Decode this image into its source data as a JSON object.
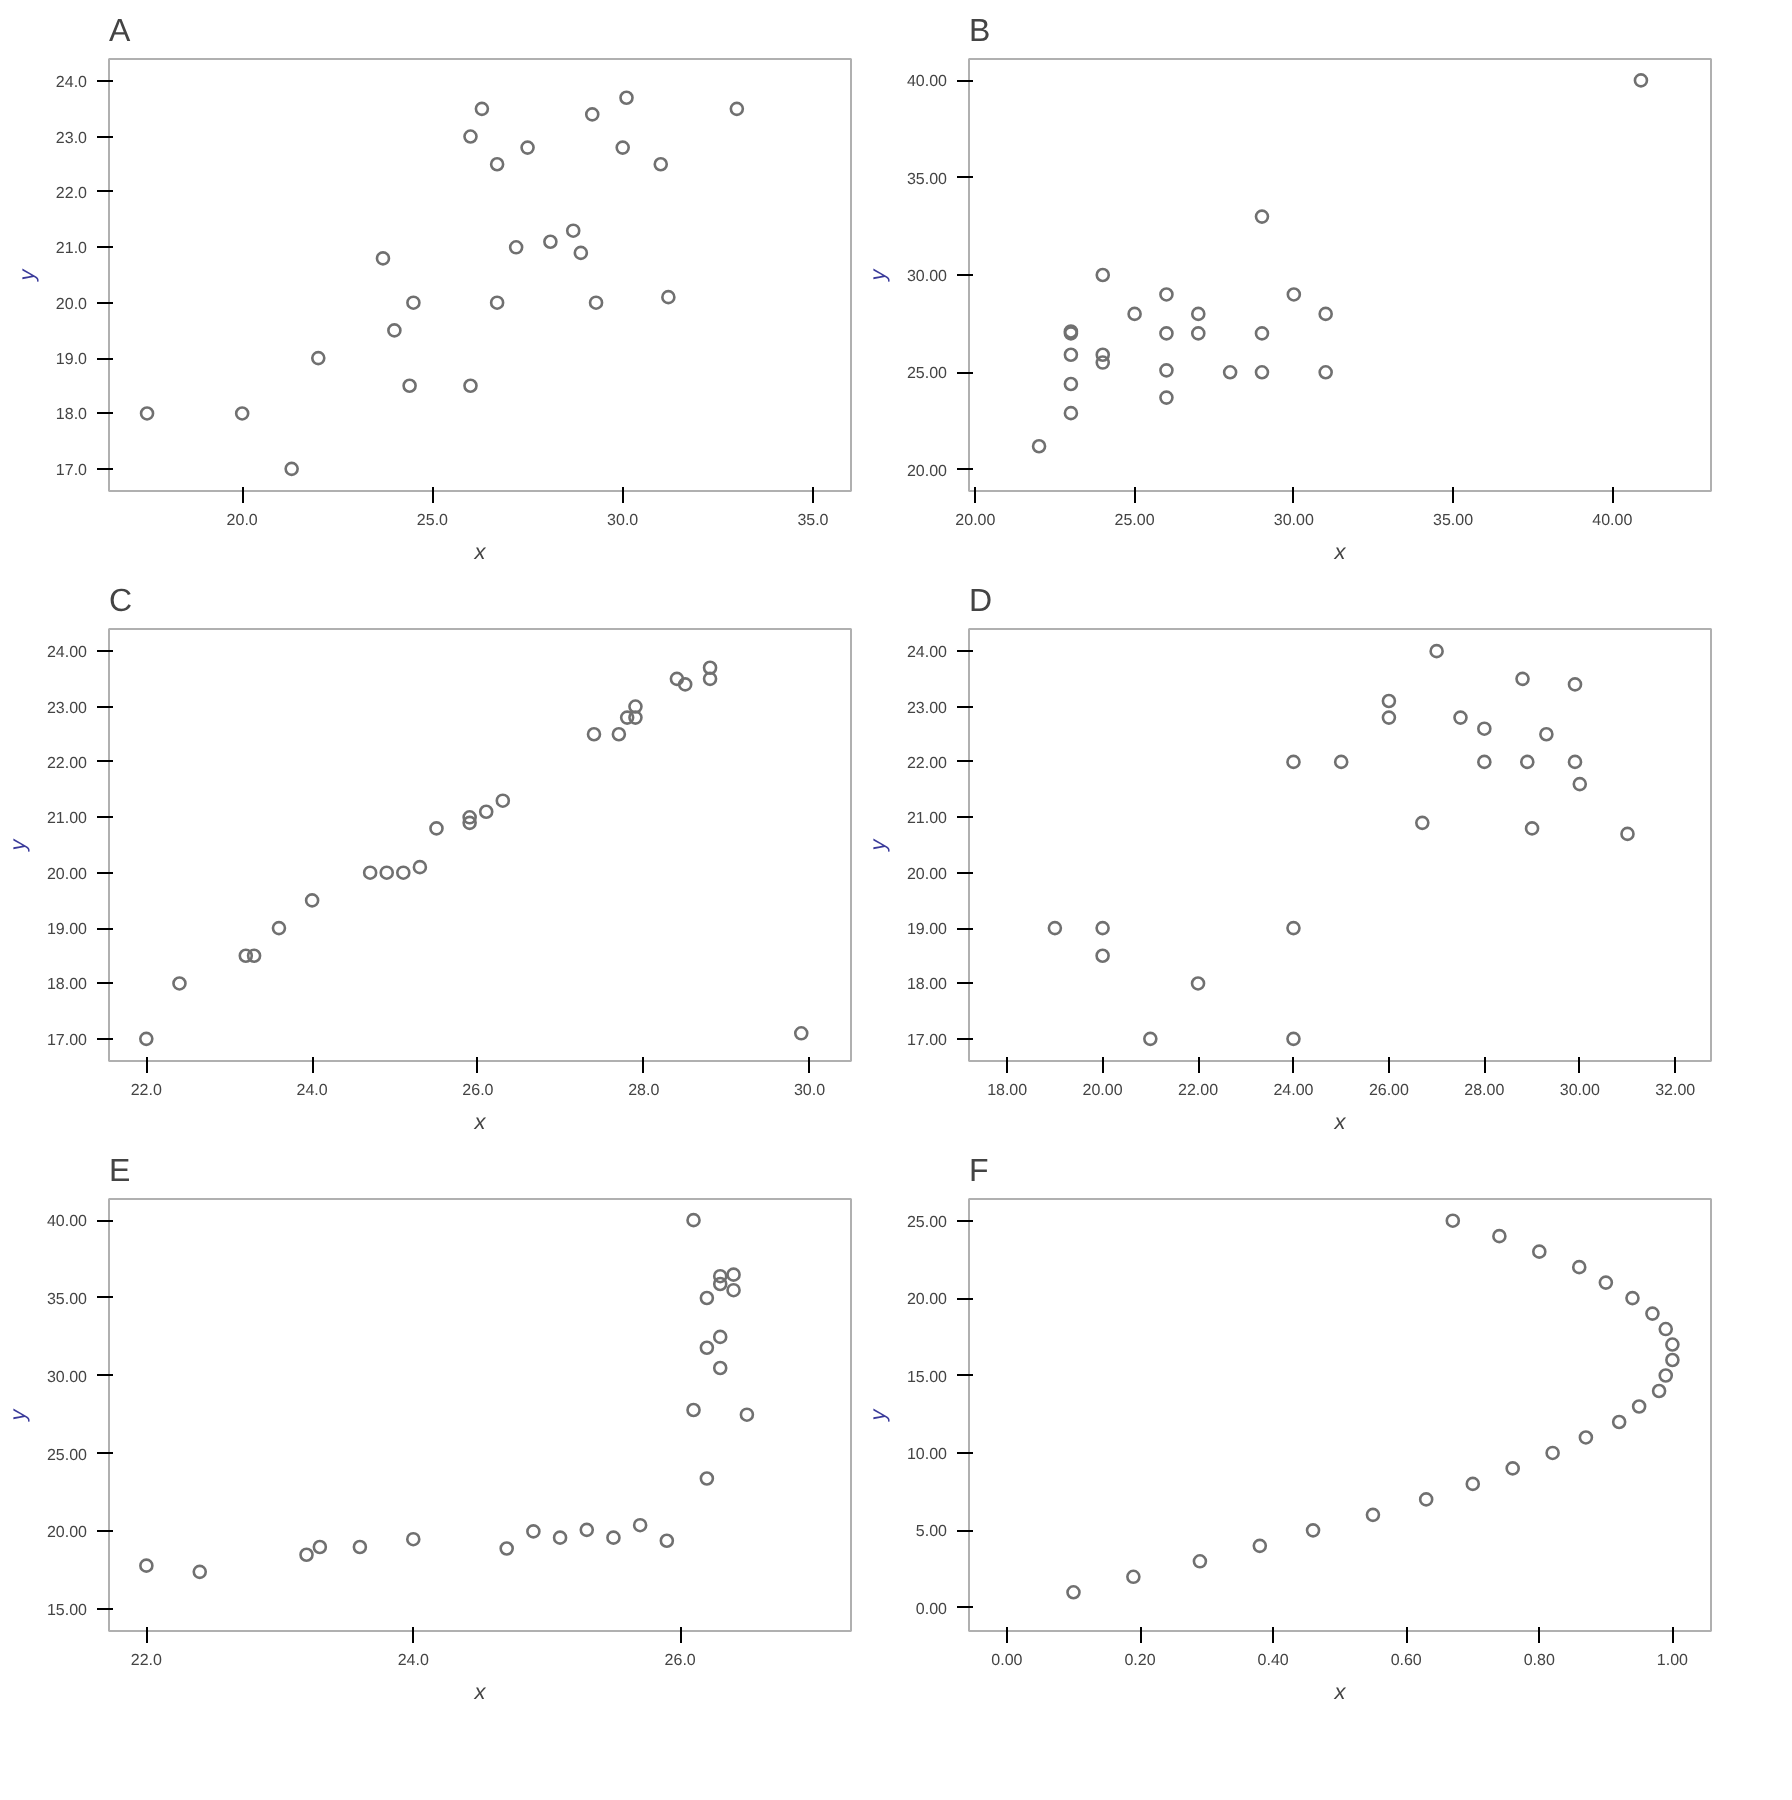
{
  "chart_data": [
    {
      "type": "scatter",
      "title": "A",
      "xlabel": "x",
      "ylabel": "y",
      "marker": "circle",
      "grid": false,
      "color": "#707070",
      "x": [
        17.5,
        20.0,
        21.3,
        22.0,
        23.7,
        24.0,
        24.5,
        24.4,
        26.0,
        26.3,
        26.0,
        26.7,
        26.7,
        27.2,
        27.5,
        28.1,
        28.7,
        28.9,
        29.2,
        29.3,
        30.0,
        30.1,
        31.0,
        31.2,
        33.0
      ],
      "values": [
        18.0,
        18.0,
        17.0,
        19.0,
        20.8,
        19.5,
        20.0,
        18.5,
        23.0,
        23.5,
        18.5,
        22.5,
        20.0,
        21.0,
        22.8,
        21.1,
        21.3,
        20.9,
        23.4,
        20.0,
        22.8,
        23.7,
        22.5,
        20.1,
        23.5
      ],
      "xlim": [
        16.5,
        36.0
      ],
      "ylim": [
        16.6,
        24.4
      ],
      "xticks": [
        {
          "value": 20,
          "label": "20.0"
        },
        {
          "value": 25,
          "label": "25.0"
        },
        {
          "value": 30,
          "label": "30.0"
        },
        {
          "value": 35,
          "label": "35.0"
        }
      ],
      "yticks": [
        {
          "value": 17,
          "label": "17.0"
        },
        {
          "value": 18,
          "label": "18.0"
        },
        {
          "value": 19,
          "label": "19.0"
        },
        {
          "value": 20,
          "label": "20.0"
        },
        {
          "value": 21,
          "label": "21.0"
        },
        {
          "value": 22,
          "label": "22.0"
        },
        {
          "value": 23,
          "label": "23.0"
        },
        {
          "value": 24,
          "label": "24.0"
        }
      ]
    },
    {
      "type": "scatter",
      "title": "B",
      "xlabel": "x",
      "ylabel": "y",
      "marker": "circle",
      "grid": false,
      "color": "#707070",
      "x": [
        22.0,
        23.0,
        23.0,
        23.0,
        23.0,
        23.0,
        24.0,
        24.0,
        24.0,
        25.0,
        26.0,
        26.0,
        26.0,
        26.0,
        27.0,
        27.0,
        28.0,
        29.0,
        29.0,
        29.0,
        30.0,
        31.0,
        31.0,
        40.9
      ],
      "values": [
        21.2,
        22.9,
        24.4,
        25.9,
        27.0,
        27.1,
        30.0,
        25.9,
        25.5,
        28.0,
        29.0,
        27.0,
        25.1,
        23.7,
        28.0,
        27.0,
        25.0,
        33.0,
        27.0,
        25.0,
        29.0,
        28.0,
        25.0,
        40.0
      ],
      "xlim": [
        19.8,
        43.1
      ],
      "ylim": [
        18.9,
        41.1
      ],
      "xticks": [
        {
          "value": 20,
          "label": "20.00"
        },
        {
          "value": 25,
          "label": "25.00"
        },
        {
          "value": 30,
          "label": "30.00"
        },
        {
          "value": 35,
          "label": "35.00"
        },
        {
          "value": 40,
          "label": "40.00"
        }
      ],
      "yticks": [
        {
          "value": 20,
          "label": "20.00"
        },
        {
          "value": 25,
          "label": "25.00"
        },
        {
          "value": 30,
          "label": "30.00"
        },
        {
          "value": 35,
          "label": "35.00"
        },
        {
          "value": 40,
          "label": "40.00"
        }
      ]
    },
    {
      "type": "scatter",
      "title": "C",
      "xlabel": "x",
      "ylabel": "y",
      "marker": "circle",
      "grid": false,
      "color": "#707070",
      "x": [
        22.0,
        22.4,
        23.2,
        23.3,
        23.6,
        24.0,
        24.7,
        24.9,
        25.1,
        25.3,
        25.5,
        25.9,
        25.9,
        26.1,
        26.3,
        27.4,
        27.7,
        27.8,
        27.9,
        27.9,
        28.4,
        28.5,
        28.8,
        28.8,
        29.9
      ],
      "values": [
        17.0,
        18.0,
        18.5,
        18.5,
        19.0,
        19.5,
        20.0,
        20.0,
        20.0,
        20.1,
        20.8,
        21.0,
        20.9,
        21.1,
        21.3,
        22.5,
        22.5,
        22.8,
        23.0,
        22.8,
        23.5,
        23.4,
        23.7,
        23.5,
        17.1
      ],
      "xlim": [
        21.55,
        30.5
      ],
      "ylim": [
        16.6,
        24.4
      ],
      "xticks": [
        {
          "value": 22,
          "label": "22.0"
        },
        {
          "value": 24,
          "label": "24.0"
        },
        {
          "value": 26,
          "label": "26.0"
        },
        {
          "value": 28,
          "label": "28.0"
        },
        {
          "value": 30,
          "label": "30.0"
        }
      ],
      "yticks": [
        {
          "value": 17,
          "label": "17.00"
        },
        {
          "value": 18,
          "label": "18.00"
        },
        {
          "value": 19,
          "label": "19.00"
        },
        {
          "value": 20,
          "label": "20.00"
        },
        {
          "value": 21,
          "label": "21.00"
        },
        {
          "value": 22,
          "label": "22.00"
        },
        {
          "value": 23,
          "label": "23.00"
        },
        {
          "value": 24,
          "label": "24.00"
        }
      ]
    },
    {
      "type": "scatter",
      "title": "D",
      "xlabel": "x",
      "ylabel": "y",
      "marker": "circle",
      "grid": false,
      "color": "#707070",
      "x": [
        19.0,
        20.0,
        20.0,
        21.0,
        22.0,
        24.0,
        24.0,
        24.0,
        25.0,
        26.0,
        26.0,
        26.7,
        27.0,
        27.5,
        28.0,
        28.0,
        28.8,
        28.9,
        29.0,
        29.3,
        29.9,
        29.9,
        30.0,
        31.0
      ],
      "values": [
        19.0,
        19.0,
        18.5,
        17.0,
        18.0,
        22.0,
        19.0,
        17.0,
        22.0,
        23.1,
        22.8,
        20.9,
        24.0,
        22.8,
        22.6,
        22.0,
        23.5,
        22.0,
        20.8,
        22.5,
        23.4,
        22.0,
        21.6,
        20.7
      ],
      "xlim": [
        17.2,
        32.75
      ],
      "ylim": [
        16.6,
        24.4
      ],
      "xticks": [
        {
          "value": 18,
          "label": "18.00"
        },
        {
          "value": 20,
          "label": "20.00"
        },
        {
          "value": 22,
          "label": "22.00"
        },
        {
          "value": 24,
          "label": "24.00"
        },
        {
          "value": 26,
          "label": "26.00"
        },
        {
          "value": 28,
          "label": "28.00"
        },
        {
          "value": 30,
          "label": "30.00"
        },
        {
          "value": 32,
          "label": "32.00"
        }
      ],
      "yticks": [
        {
          "value": 17,
          "label": "17.00"
        },
        {
          "value": 18,
          "label": "18.00"
        },
        {
          "value": 19,
          "label": "19.00"
        },
        {
          "value": 20,
          "label": "20.00"
        },
        {
          "value": 21,
          "label": "21.00"
        },
        {
          "value": 22,
          "label": "22.00"
        },
        {
          "value": 23,
          "label": "23.00"
        },
        {
          "value": 24,
          "label": "24.00"
        }
      ]
    },
    {
      "type": "scatter",
      "title": "E",
      "xlabel": "x",
      "ylabel": "y",
      "marker": "circle",
      "grid": false,
      "color": "#707070",
      "x": [
        22.0,
        22.4,
        23.2,
        23.3,
        23.6,
        24.0,
        24.7,
        24.9,
        25.1,
        25.3,
        25.5,
        25.7,
        25.9,
        26.1,
        26.2,
        26.3,
        26.3,
        26.4,
        26.4,
        26.2,
        26.3,
        26.3,
        26.1,
        26.5,
        26.2
      ],
      "values": [
        17.8,
        17.4,
        18.5,
        19.0,
        19.0,
        19.5,
        18.9,
        20.0,
        19.6,
        20.1,
        19.6,
        20.4,
        19.4,
        40.0,
        35.0,
        36.4,
        35.9,
        36.5,
        35.5,
        31.8,
        32.5,
        30.5,
        27.8,
        27.5,
        23.4
      ],
      "xlim": [
        21.72,
        27.28
      ],
      "ylim": [
        13.6,
        41.36
      ],
      "xticks": [
        {
          "value": 22,
          "label": "22.0"
        },
        {
          "value": 24,
          "label": "24.0"
        },
        {
          "value": 26,
          "label": "26.0"
        }
      ],
      "yticks": [
        {
          "value": 15,
          "label": "15.00"
        },
        {
          "value": 20,
          "label": "20.00"
        },
        {
          "value": 25,
          "label": "25.00"
        },
        {
          "value": 30,
          "label": "30.00"
        },
        {
          "value": 35,
          "label": "35.00"
        },
        {
          "value": 40,
          "label": "40.00"
        }
      ]
    },
    {
      "type": "scatter",
      "title": "F",
      "xlabel": "x",
      "ylabel": "y",
      "marker": "circle",
      "grid": false,
      "color": "#707070",
      "x": [
        0.1,
        0.19,
        0.29,
        0.38,
        0.46,
        0.55,
        0.63,
        0.7,
        0.76,
        0.82,
        0.87,
        0.92,
        0.95,
        0.98,
        0.99,
        1.0,
        1.0,
        0.99,
        0.97,
        0.94,
        0.9,
        0.86,
        0.8,
        0.74,
        0.67
      ],
      "values": [
        1,
        2,
        3,
        4,
        5,
        6,
        7,
        8,
        9,
        10,
        11,
        12,
        13,
        14,
        15,
        16,
        17,
        18,
        19,
        20,
        21,
        22,
        23,
        24,
        25
      ],
      "xlim": [
        -0.057,
        1.058
      ],
      "ylim": [
        -1.5,
        26.4
      ],
      "xticks": [
        {
          "value": 0,
          "label": "0.00"
        },
        {
          "value": 0.2,
          "label": "0.20"
        },
        {
          "value": 0.4,
          "label": "0.40"
        },
        {
          "value": 0.6,
          "label": "0.60"
        },
        {
          "value": 0.8,
          "label": "0.80"
        },
        {
          "value": 1,
          "label": "1.00"
        }
      ],
      "yticks": [
        {
          "value": 0,
          "label": "0.00"
        },
        {
          "value": 5,
          "label": "5.00"
        },
        {
          "value": 10,
          "label": "10.00"
        },
        {
          "value": 15,
          "label": "15.00"
        },
        {
          "value": 20,
          "label": "20.00"
        },
        {
          "value": 25,
          "label": "25.00"
        }
      ]
    }
  ]
}
